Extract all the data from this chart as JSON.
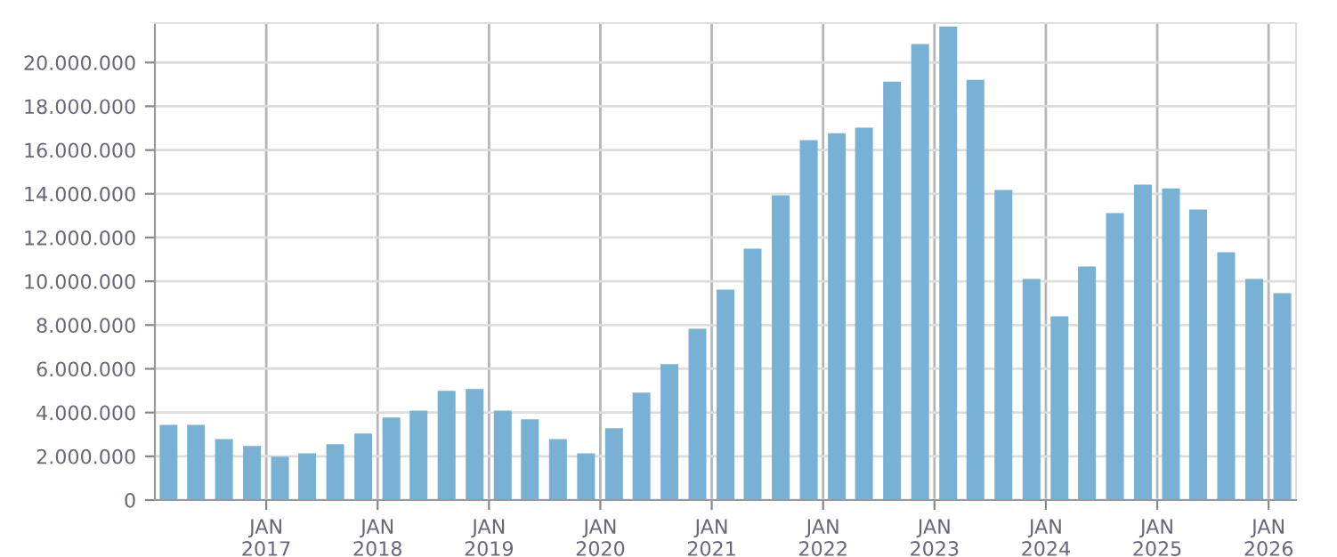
{
  "chart_data": {
    "type": "bar",
    "color": "#78b1d3",
    "x": [
      "2016-02-15",
      "2016-05-15",
      "2016-08-15",
      "2016-11-15",
      "2017-02-15",
      "2017-05-15",
      "2017-08-15",
      "2017-11-15",
      "2018-02-15",
      "2018-05-15",
      "2018-08-15",
      "2018-11-15",
      "2019-02-15",
      "2019-05-15",
      "2019-08-15",
      "2019-11-15",
      "2020-02-15",
      "2020-05-15",
      "2020-08-15",
      "2020-11-15",
      "2021-02-15",
      "2021-05-15",
      "2021-08-15",
      "2021-11-15",
      "2022-02-15",
      "2022-05-15",
      "2022-08-15",
      "2022-11-15",
      "2023-02-15",
      "2023-05-15",
      "2023-08-15",
      "2023-11-15",
      "2024-02-15",
      "2024-05-15",
      "2024-08-15",
      "2024-11-15",
      "2025-02-15",
      "2025-05-15",
      "2025-08-15",
      "2025-11-15",
      "2026-02-15"
    ],
    "values": [
      3440000,
      3440000,
      2790000,
      2470000,
      1980000,
      2140000,
      2550000,
      3040000,
      3770000,
      4090000,
      4990000,
      5070000,
      4090000,
      3690000,
      2790000,
      2140000,
      3280000,
      4910000,
      6210000,
      7830000,
      9620000,
      11490000,
      13930000,
      16450000,
      16770000,
      17020000,
      19130000,
      20840000,
      21650000,
      19210000,
      14170000,
      10110000,
      8400000,
      10680000,
      13120000,
      14420000,
      14250000,
      13280000,
      11330000,
      10110000,
      9460000
    ],
    "xlim": [
      "2016-01-01",
      "2026-04-01"
    ],
    "xticks": [
      {
        "value": "2017-01-01",
        "label": "JAN\n2017"
      },
      {
        "value": "2018-01-01",
        "label": "JAN\n2018"
      },
      {
        "value": "2019-01-01",
        "label": "JAN\n2019"
      },
      {
        "value": "2020-01-01",
        "label": "JAN\n2020"
      },
      {
        "value": "2021-01-01",
        "label": "JAN\n2021"
      },
      {
        "value": "2022-01-01",
        "label": "JAN\n2022"
      },
      {
        "value": "2023-01-01",
        "label": "JAN\n2023"
      },
      {
        "value": "2024-01-01",
        "label": "JAN\n2024"
      },
      {
        "value": "2025-01-01",
        "label": "JAN\n2025"
      },
      {
        "value": "2026-01-01",
        "label": "JAN\n2026"
      }
    ],
    "ylim": [
      0,
      21800000
    ],
    "yticks": [
      0,
      {
        "value": 2000000,
        "label": "2.000.000"
      },
      {
        "value": 4000000,
        "label": "4.000.000"
      },
      {
        "value": 6000000,
        "label": "6.000.000"
      },
      {
        "value": 8000000,
        "label": "8.000.000"
      },
      {
        "value": 10000000,
        "label": "10.000.000"
      },
      {
        "value": 12000000,
        "label": "12.000.000"
      },
      {
        "value": 14000000,
        "label": "14.000.000"
      },
      {
        "value": 16000000,
        "label": "16.000.000"
      },
      {
        "value": 18000000,
        "label": "18.000.000"
      },
      {
        "value": 20000000,
        "label": "20.000.000"
      }
    ],
    "grid": true
  }
}
